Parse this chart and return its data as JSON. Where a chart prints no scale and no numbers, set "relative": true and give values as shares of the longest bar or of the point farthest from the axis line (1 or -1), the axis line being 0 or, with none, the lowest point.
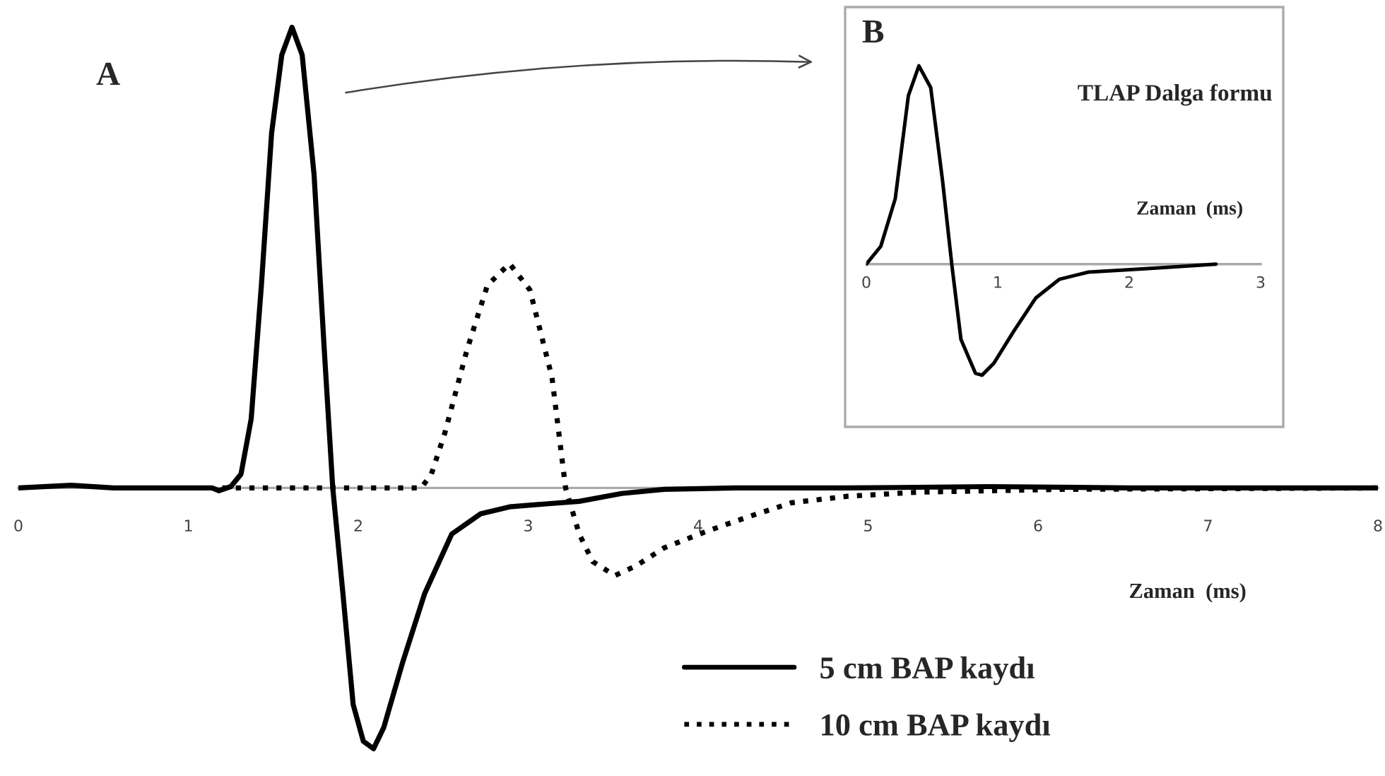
{
  "chart_data": [
    {
      "type": "line",
      "relative": true,
      "xlabel": "Zaman  (ms)",
      "xlim": [
        0,
        8
      ],
      "xticks": [
        0,
        1,
        2,
        3,
        4,
        5,
        6,
        7,
        8
      ],
      "grid": false,
      "legend": "bottom right",
      "marker": "none",
      "annotations": [
        "A"
      ],
      "series": [
        {
          "name": "5 cm BAP kaydı",
          "color": "#000000",
          "line_style": "solid",
          "x": [
            0,
            0.31,
            0.56,
            1.14,
            1.18,
            1.25,
            1.31,
            1.37,
            1.43,
            1.49,
            1.55,
            1.61,
            1.67,
            1.74,
            1.8,
            1.85,
            1.91,
            1.97,
            2.03,
            2.09,
            2.15,
            2.26,
            2.39,
            2.55,
            2.72,
            2.89,
            3.09,
            3.3,
            3.55,
            3.8,
            4.22,
            4.88,
            5.71,
            6.54,
            8
          ],
          "values": [
            0,
            0.006,
            0,
            0,
            -0.006,
            0.003,
            0.03,
            0.15,
            0.44,
            0.77,
            0.94,
            1.0,
            0.94,
            0.68,
            0.3,
            0,
            -0.23,
            -0.47,
            -0.55,
            -0.566,
            -0.52,
            -0.38,
            -0.23,
            -0.1,
            -0.056,
            -0.041,
            -0.035,
            -0.029,
            -0.012,
            -0.003,
            0,
            0,
            0.003,
            0,
            0
          ]
        },
        {
          "name": "10 cm BAP kaydı",
          "color": "#000000",
          "line_style": "dotted",
          "x": [
            1.2,
            2.37,
            2.43,
            2.51,
            2.64,
            2.76,
            2.89,
            3.01,
            3.14,
            3.22,
            3.3,
            3.38,
            3.51,
            3.63,
            3.8,
            4.05,
            4.3,
            4.55,
            4.88,
            5.3,
            6.13,
            8
          ],
          "values": [
            0,
            0,
            0.03,
            0.12,
            0.3,
            0.44,
            0.487,
            0.43,
            0.24,
            0,
            -0.1,
            -0.16,
            -0.19,
            -0.17,
            -0.13,
            -0.094,
            -0.062,
            -0.032,
            -0.018,
            -0.009,
            -0.003,
            0
          ]
        }
      ]
    },
    {
      "type": "line",
      "relative": true,
      "title": "TLAP Dalga formu",
      "xlabel": "Zaman  (ms)",
      "xlim": [
        0,
        3
      ],
      "xticks": [
        0,
        1,
        2,
        3
      ],
      "grid": false,
      "marker": "none",
      "annotations": [
        "B"
      ],
      "series": [
        {
          "color": "#000000",
          "line_style": "solid",
          "x": [
            0,
            0.11,
            0.22,
            0.32,
            0.4,
            0.49,
            0.58,
            0.65,
            0.72,
            0.83,
            0.88,
            0.97,
            1.12,
            1.29,
            1.47,
            1.69,
            2.01,
            2.27,
            2.66
          ],
          "values": [
            0,
            0.09,
            0.33,
            0.85,
            1.0,
            0.89,
            0.42,
            0,
            -0.38,
            -0.55,
            -0.56,
            -0.5,
            -0.34,
            -0.17,
            -0.076,
            -0.04,
            -0.028,
            -0.017,
            0
          ]
        }
      ]
    }
  ]
}
